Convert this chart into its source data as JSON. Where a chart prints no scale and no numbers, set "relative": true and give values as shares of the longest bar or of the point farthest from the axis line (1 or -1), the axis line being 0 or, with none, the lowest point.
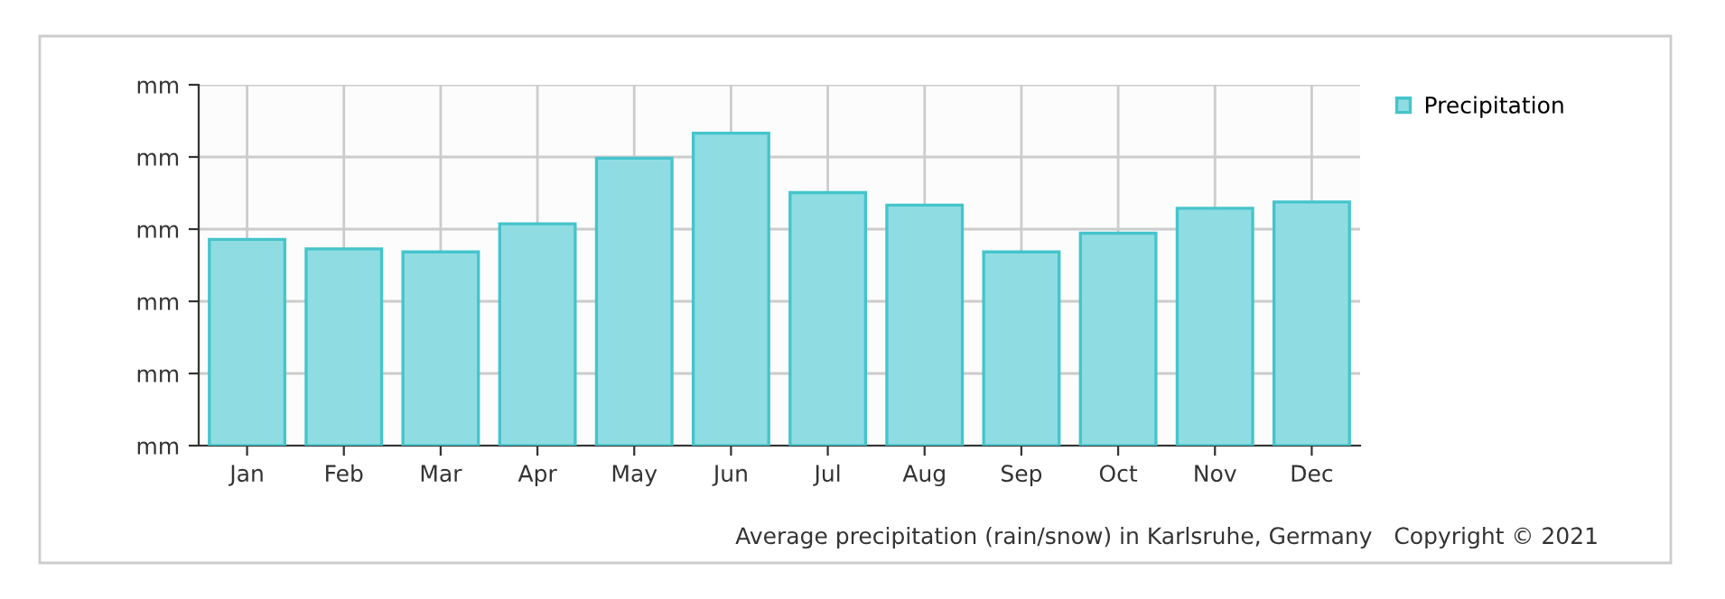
{
  "chart_data": {
    "type": "bar",
    "relative": true,
    "categories": [
      "Jan",
      "Feb",
      "Mar",
      "Apr",
      "May",
      "Jun",
      "Jul",
      "Aug",
      "Sep",
      "Oct",
      "Nov",
      "Dec"
    ],
    "series": [
      {
        "name": "Precipitation",
        "color": "#8fdde2",
        "values": [
          0.66,
          0.63,
          0.62,
          0.71,
          0.92,
          1,
          0.81,
          0.77,
          0.62,
          0.68,
          0.76,
          0.78
        ]
      }
    ],
    "grid": true,
    "legend": "top right",
    "annotations": [
      "mm",
      "mm",
      "mm",
      "mm",
      "mm",
      "mm",
      "Average precipitation (rain/snow) in Karlsruhe, Germany   Copyright © 2021"
    ]
  }
}
